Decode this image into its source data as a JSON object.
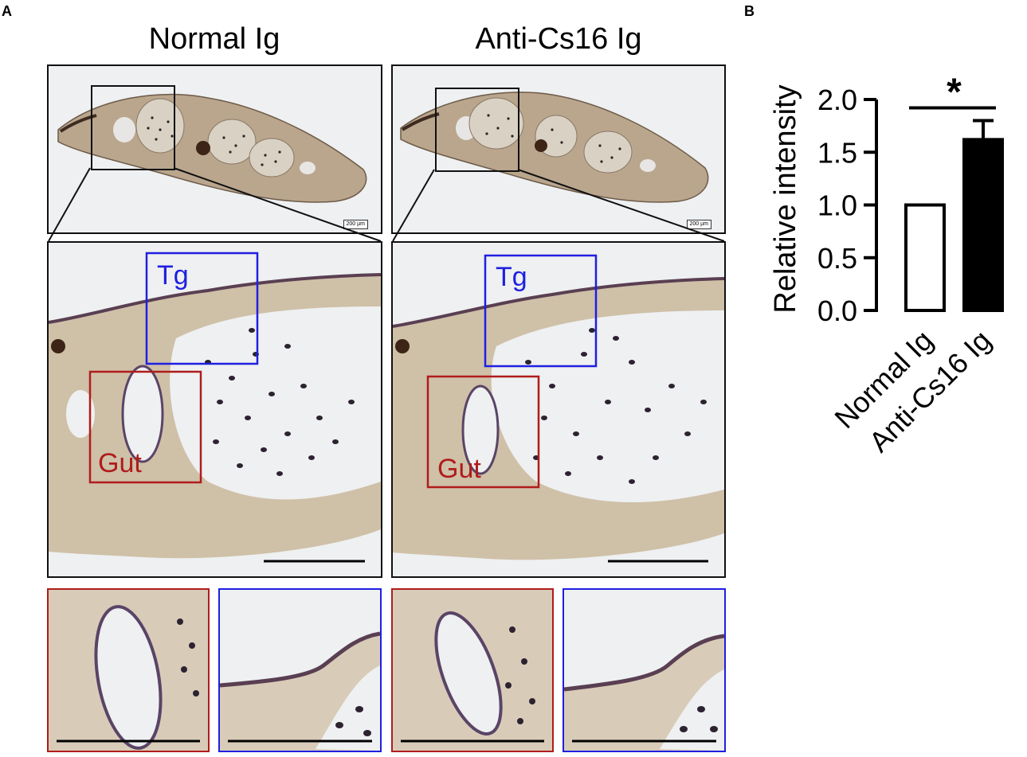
{
  "panels": {
    "a_letter": "A",
    "b_letter": "B"
  },
  "column_titles": {
    "normal": "Normal Ig",
    "anti": "Anti-Cs16 Ig"
  },
  "overview_scale_label": "200 µm",
  "roi_labels": {
    "tg": "Tg",
    "gut": "Gut"
  },
  "colors": {
    "tg_box": "#1f1fe0",
    "gut_box": "#b01c1c",
    "tissue": "#c9b79c",
    "cell_dark": "#2c2230",
    "bar_normal": "#ffffff",
    "bar_anti": "#000000"
  },
  "chart_data": {
    "type": "bar",
    "categories": [
      "Normal Ig",
      "Anti-Cs16 Ig"
    ],
    "values": [
      1.0,
      1.62
    ],
    "errors": [
      0,
      0.18
    ],
    "bar_fills": [
      "#ffffff",
      "#000000"
    ],
    "ylabel": "Relative intensity",
    "ylim": [
      0,
      2.0
    ],
    "yticks": [
      0.0,
      0.5,
      1.0,
      1.5,
      2.0
    ],
    "ytick_labels": [
      "0.0",
      "0.5",
      "1.0",
      "1.5",
      "2.0"
    ],
    "significance": "*",
    "grid": false
  }
}
